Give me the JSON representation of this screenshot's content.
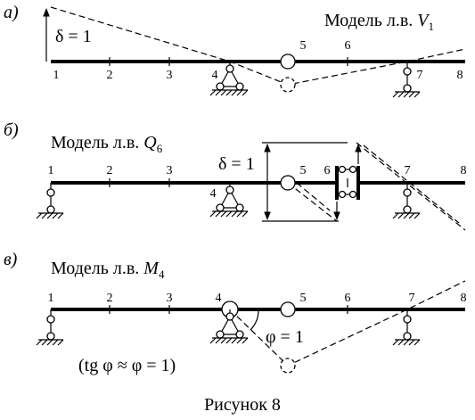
{
  "panels": [
    {
      "letter": "а)",
      "title": {
        "label": "Модель  л.в. ",
        "symbol": "V",
        "subscript": "1"
      },
      "delta": "δ = 1",
      "nodes": [
        "1",
        "2",
        "3",
        "4",
        "5",
        "6",
        "7",
        "8"
      ]
    },
    {
      "letter": "б)",
      "title": {
        "label": "Модель  л.в. ",
        "symbol": "Q",
        "subscript": "6"
      },
      "delta": "δ = 1",
      "nodes": [
        "1",
        "2",
        "3",
        "4",
        "5",
        "6",
        "7",
        "8"
      ]
    },
    {
      "letter": "в)",
      "title": {
        "label": "Модель  л.в. ",
        "symbol": "M",
        "subscript": "4"
      },
      "angle": "φ = 1",
      "note": "(tg φ ≈ φ = 1)",
      "nodes": [
        "1",
        "2",
        "3",
        "4",
        "5",
        "6",
        "7",
        "8"
      ]
    }
  ],
  "caption": "Рисунок 8"
}
